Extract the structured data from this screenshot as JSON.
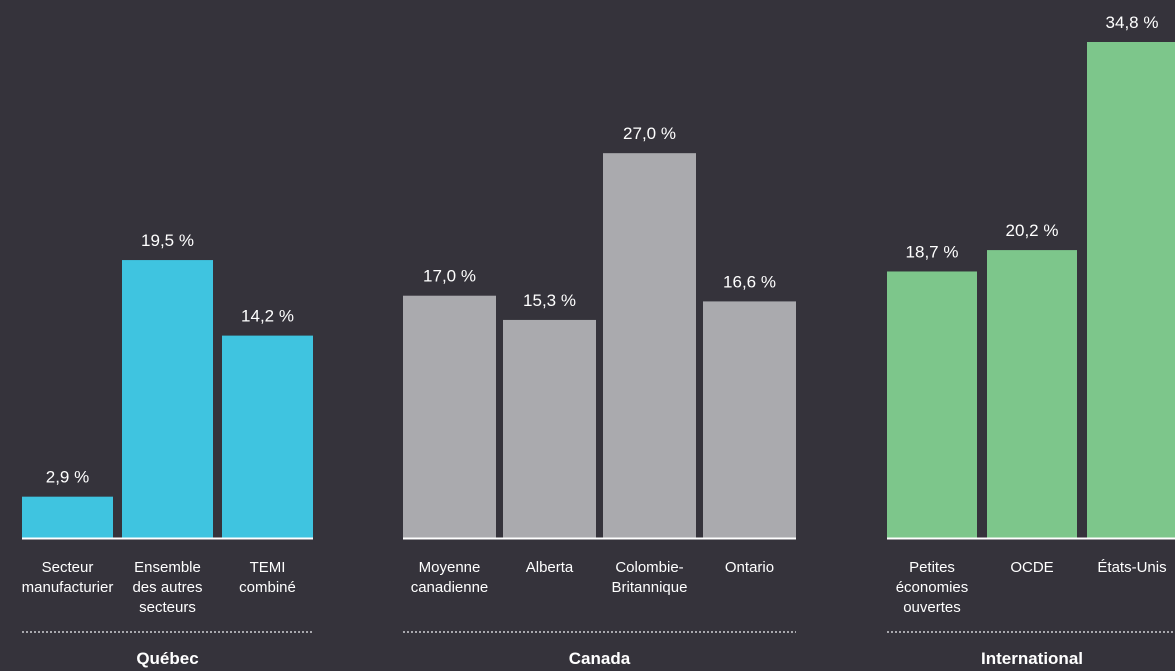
{
  "chart_data": {
    "type": "bar",
    "title": "",
    "ylim": [
      0,
      36
    ],
    "groups": [
      {
        "name": "Québec",
        "color": "#3fc4e0",
        "categories": [
          [
            "Secteur",
            "manufacturier"
          ],
          [
            "Ensemble",
            "des autres",
            "secteurs"
          ],
          [
            "TEMI",
            "combiné"
          ]
        ],
        "values": [
          2.9,
          19.5,
          14.2
        ],
        "labels": [
          "2,9 %",
          "19,5 %",
          "14,2 %"
        ]
      },
      {
        "name": "Canada",
        "color": "#aaaaae",
        "categories": [
          [
            "Moyenne",
            "canadienne"
          ],
          [
            "Alberta"
          ],
          [
            "Colombie-",
            "Britannique"
          ],
          [
            "Ontario"
          ]
        ],
        "values": [
          17.0,
          15.3,
          27.0,
          16.6
        ],
        "labels": [
          "17,0 %",
          "15,3 %",
          "27,0 %",
          "16,6 %"
        ]
      },
      {
        "name": "International",
        "color": "#7dc68b",
        "categories": [
          [
            "Petites",
            "économies",
            "ouvertes"
          ],
          [
            "OCDE"
          ],
          [
            "États-Unis"
          ]
        ],
        "values": [
          18.7,
          20.2,
          34.8
        ],
        "labels": [
          "18,7 %",
          "20,2 %",
          "34,8 %"
        ]
      }
    ]
  }
}
